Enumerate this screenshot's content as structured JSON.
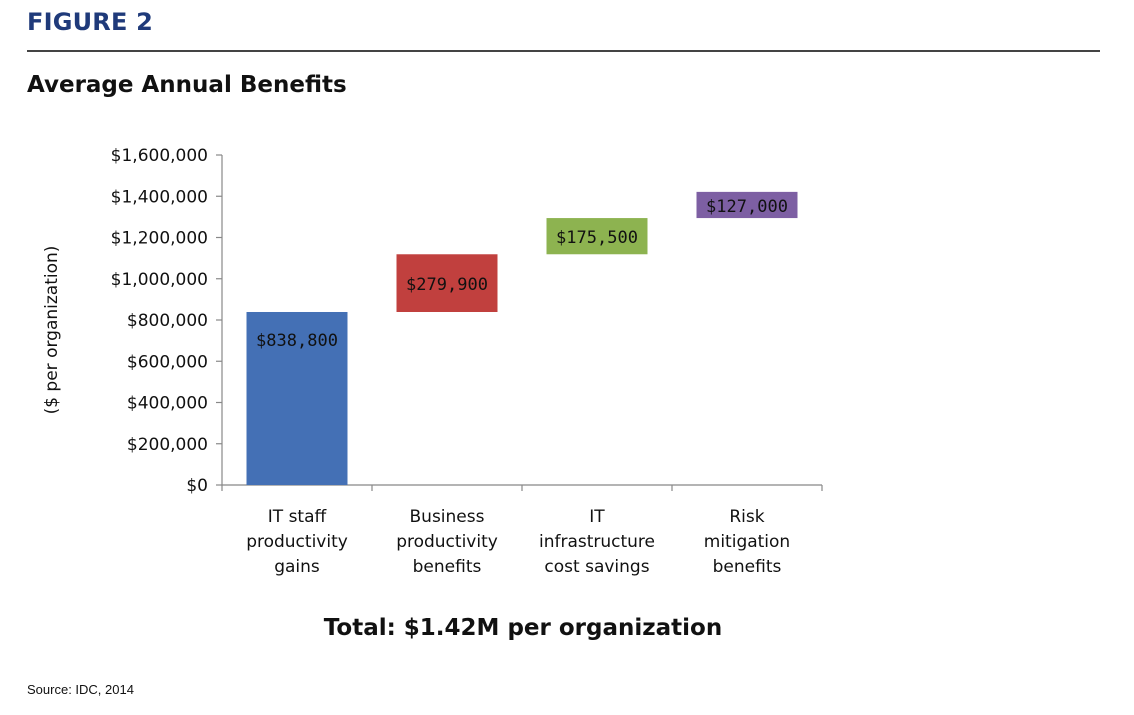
{
  "figure_label": "FIGURE 2",
  "total_text": "Total: $1.42M per organization",
  "source_text": "Source: IDC, 2014",
  "chart_data": {
    "type": "bar",
    "subtype": "waterfall",
    "title": "Average Annual Benefits",
    "ylabel": "($ per organization)",
    "xlabel": "",
    "ylim": [
      0,
      1600000
    ],
    "yticks": [
      0,
      200000,
      400000,
      600000,
      800000,
      1000000,
      1200000,
      1400000,
      1600000
    ],
    "ytick_labels": [
      "$0",
      "$200,000",
      "$400,000",
      "$600,000",
      "$800,000",
      "$1,000,000",
      "$1,200,000",
      "$1,400,000",
      "$1,600,000"
    ],
    "categories": [
      [
        "IT staff",
        "productivity",
        "gains"
      ],
      [
        "Business",
        "productivity",
        "benefits"
      ],
      [
        "IT",
        "infrastructure",
        "cost savings"
      ],
      [
        "Risk",
        "mitigation",
        "benefits"
      ]
    ],
    "values": [
      838800,
      279900,
      175500,
      127000
    ],
    "data_labels": [
      "$838,800",
      "$279,900",
      "$175,500",
      "$127,000"
    ],
    "colors": [
      "#4470b5",
      "#c1403e",
      "#8db350",
      "#7d5fa3"
    ],
    "grid": false,
    "legend": "none"
  }
}
